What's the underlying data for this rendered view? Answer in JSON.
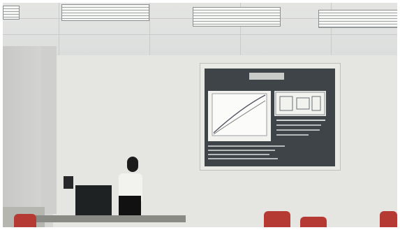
{
  "scene": {
    "description_free": true,
    "slide": {
      "title": "",
      "subtitle": ""
    }
  }
}
